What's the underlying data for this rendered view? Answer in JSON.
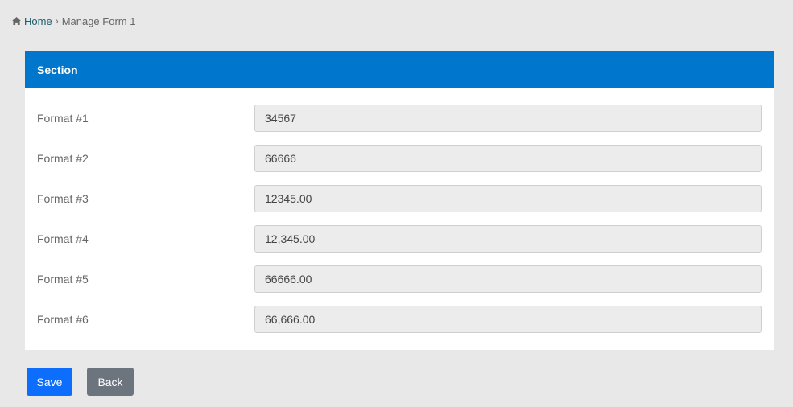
{
  "breadcrumb": {
    "home_icon": "home-icon",
    "home_label": "Home",
    "separator": "›",
    "current": "Manage Form 1"
  },
  "section": {
    "title": "Section",
    "fields": [
      {
        "label": "Format #1",
        "value": "34567"
      },
      {
        "label": "Format #2",
        "value": "66666"
      },
      {
        "label": "Format #3",
        "value": "12345.00"
      },
      {
        "label": "Format #4",
        "value": "12,345.00"
      },
      {
        "label": "Format #5",
        "value": "66666.00"
      },
      {
        "label": "Format #6",
        "value": "66,666.00"
      }
    ]
  },
  "actions": {
    "save_label": "Save",
    "back_label": "Back"
  },
  "colors": {
    "header": "#0077cc",
    "save": "#0d6efd",
    "back": "#6c757d",
    "background": "#e8e8e8"
  }
}
